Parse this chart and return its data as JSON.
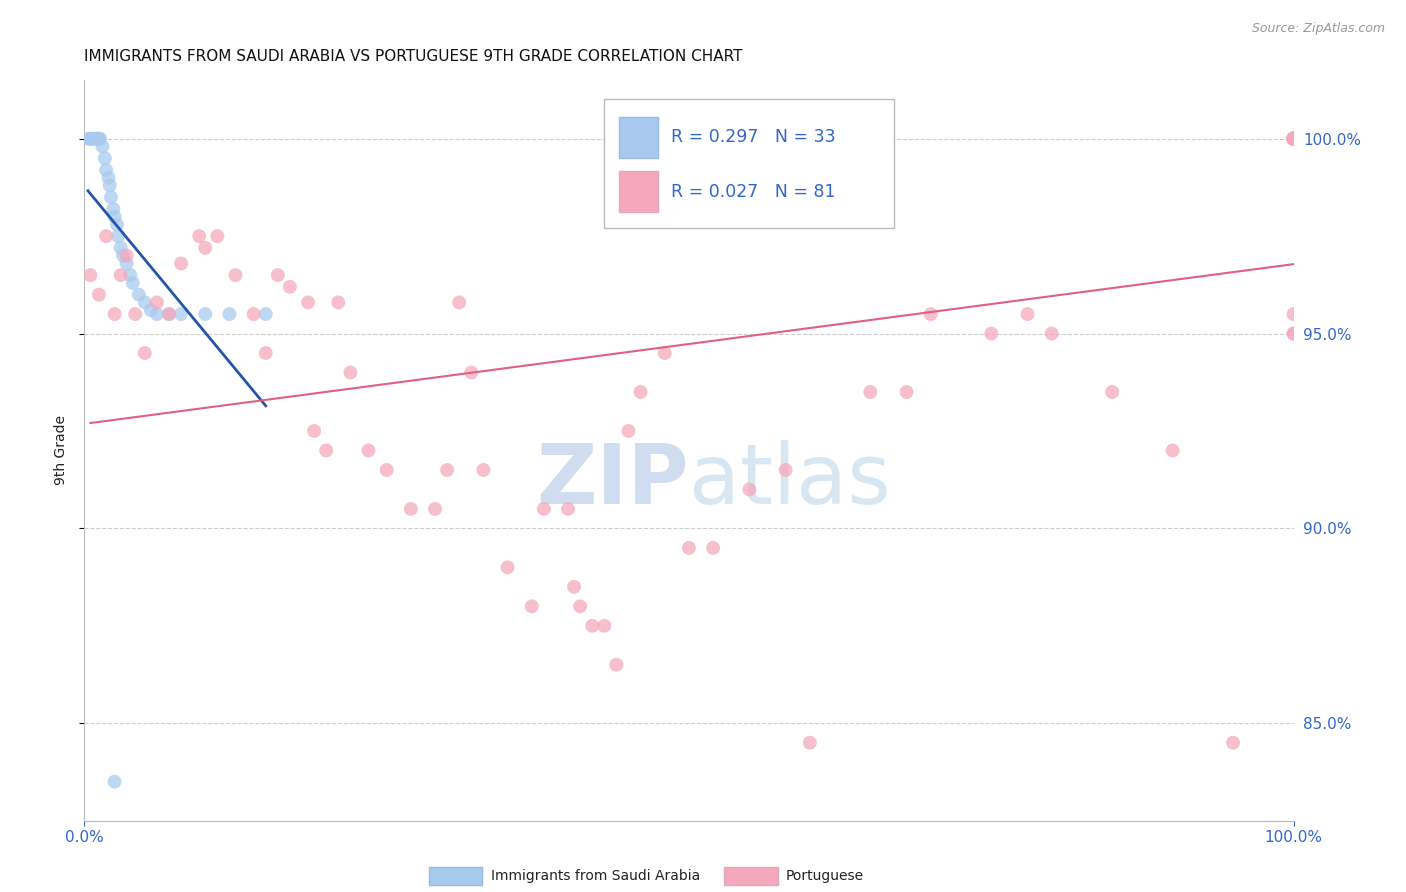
{
  "title": "IMMIGRANTS FROM SAUDI ARABIA VS PORTUGUESE 9TH GRADE CORRELATION CHART",
  "source": "Source: ZipAtlas.com",
  "ylabel": "9th Grade",
  "legend_r_blue": "R = 0.297",
  "legend_n_blue": "N = 33",
  "legend_r_pink": "R = 0.027",
  "legend_n_pink": "N = 81",
  "legend_label_blue": "Immigrants from Saudi Arabia",
  "legend_label_pink": "Portuguese",
  "blue_color": "#A8CAEE",
  "pink_color": "#F5A8BC",
  "blue_line_color": "#2255AA",
  "pink_line_color": "#E06080",
  "legend_box_color": "#DDDDDD",
  "grid_color": "#CCCCCC",
  "axis_label_color": "#3366CC",
  "text_color": "#222222",
  "watermark_zip_color": "#C8D8EE",
  "watermark_atlas_color": "#D0DCEC",
  "background_color": "#FFFFFF",
  "xlim": [
    0,
    100
  ],
  "ylim": [
    82.5,
    101.5
  ],
  "y_ticks": [
    85.0,
    90.0,
    95.0,
    100.0
  ],
  "x_ticks": [
    0,
    100
  ],
  "saudi_x": [
    0.3,
    0.5,
    0.6,
    0.8,
    1.0,
    1.1,
    1.2,
    1.3,
    1.5,
    1.7,
    1.8,
    2.0,
    2.1,
    2.2,
    2.4,
    2.5,
    2.7,
    2.8,
    3.0,
    3.2,
    3.5,
    3.8,
    4.0,
    4.5,
    5.0,
    5.5,
    6.0,
    7.0,
    8.0,
    10.0,
    12.0,
    15.0,
    2.5
  ],
  "saudi_y": [
    100.0,
    100.0,
    100.0,
    100.0,
    100.0,
    100.0,
    100.0,
    100.0,
    99.8,
    99.5,
    99.2,
    99.0,
    98.8,
    98.5,
    98.2,
    98.0,
    97.8,
    97.5,
    97.2,
    97.0,
    96.8,
    96.5,
    96.3,
    96.0,
    95.8,
    95.6,
    95.5,
    95.5,
    95.5,
    95.5,
    95.5,
    95.5,
    83.5
  ],
  "portuguese_x": [
    0.5,
    1.2,
    1.8,
    2.5,
    3.0,
    3.5,
    4.2,
    5.0,
    6.0,
    7.0,
    8.0,
    9.5,
    10.0,
    11.0,
    12.5,
    14.0,
    15.0,
    16.0,
    17.0,
    18.5,
    19.0,
    20.0,
    21.0,
    22.0,
    23.5,
    25.0,
    27.0,
    29.0,
    30.0,
    31.0,
    32.0,
    33.0,
    35.0,
    37.0,
    38.0,
    40.0,
    40.5,
    41.0,
    42.0,
    43.0,
    44.0,
    45.0,
    46.0,
    48.0,
    50.0,
    52.0,
    55.0,
    58.0,
    60.0,
    65.0,
    68.0,
    70.0,
    75.0,
    78.0,
    80.0,
    85.0,
    90.0,
    95.0,
    100.0,
    100.0,
    100.0,
    100.0,
    100.0,
    100.0,
    100.0,
    100.0,
    100.0,
    100.0,
    100.0,
    100.0,
    100.0,
    100.0,
    100.0,
    100.0,
    100.0,
    100.0,
    100.0,
    100.0,
    100.0,
    100.0,
    100.0
  ],
  "portuguese_y": [
    96.5,
    96.0,
    97.5,
    95.5,
    96.5,
    97.0,
    95.5,
    94.5,
    95.8,
    95.5,
    96.8,
    97.5,
    97.2,
    97.5,
    96.5,
    95.5,
    94.5,
    96.5,
    96.2,
    95.8,
    92.5,
    92.0,
    95.8,
    94.0,
    92.0,
    91.5,
    90.5,
    90.5,
    91.5,
    95.8,
    94.0,
    91.5,
    89.0,
    88.0,
    90.5,
    90.5,
    88.5,
    88.0,
    87.5,
    87.5,
    86.5,
    92.5,
    93.5,
    94.5,
    89.5,
    89.5,
    91.0,
    91.5,
    84.5,
    93.5,
    93.5,
    95.5,
    95.0,
    95.5,
    95.0,
    93.5,
    92.0,
    84.5,
    95.0,
    95.5,
    95.0,
    100.0,
    100.0,
    100.0,
    100.0,
    100.0,
    100.0,
    100.0,
    100.0,
    100.0,
    100.0,
    100.0,
    100.0,
    100.0,
    100.0,
    100.0,
    100.0,
    100.0,
    100.0,
    100.0,
    100.0
  ]
}
